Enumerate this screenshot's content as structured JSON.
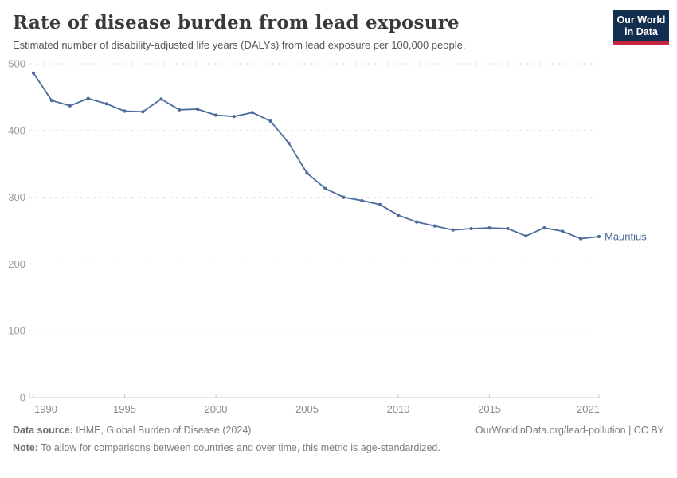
{
  "header": {
    "title": "Rate of disease burden from lead exposure",
    "subtitle": "Estimated number of disability-adjusted life years (DALYs) from lead exposure per 100,000 people.",
    "logo": {
      "line1": "Our World",
      "line2": "in Data"
    }
  },
  "chart_data": {
    "type": "line",
    "title": "Rate of disease burden from lead exposure",
    "x": [
      1990,
      1991,
      1992,
      1993,
      1994,
      1995,
      1996,
      1997,
      1998,
      1999,
      2000,
      2001,
      2002,
      2003,
      2004,
      2005,
      2006,
      2007,
      2008,
      2009,
      2010,
      2011,
      2012,
      2013,
      2014,
      2015,
      2016,
      2017,
      2018,
      2019,
      2020,
      2021
    ],
    "series": [
      {
        "name": "Mauritius",
        "color": "#4C6A9C",
        "values": [
          486,
          445,
          437,
          448,
          440,
          429,
          428,
          447,
          431,
          432,
          423,
          421,
          427,
          414,
          381,
          336,
          313,
          300,
          295,
          289,
          273,
          263,
          257,
          251,
          253,
          254,
          253,
          242,
          254,
          249,
          238,
          241
        ]
      }
    ],
    "xlabel": "",
    "ylabel": "",
    "xlim": [
      1990,
      2021
    ],
    "ylim": [
      0,
      500
    ],
    "xticks": [
      1990,
      1995,
      2000,
      2005,
      2010,
      2015,
      2021
    ],
    "yticks": [
      0,
      100,
      200,
      300,
      400,
      500
    ],
    "grid": "horizontal-dashed",
    "legend_position": "end-of-line-label",
    "end_label": "Mauritius"
  },
  "footer": {
    "source_label": "Data source:",
    "source_text": " IHME, Global Burden of Disease (2024)",
    "attribution": "OurWorldinData.org/lead-pollution | CC BY",
    "note_label": "Note:",
    "note_text": " To allow for comparisons between countries and over time, this metric is age-standardized."
  },
  "colors": {
    "series": "#4C6A9C",
    "grid": "#dedede",
    "axis": "#c9c9c9",
    "y_tick_label": "#999999",
    "x_tick_label": "#8a8a8a",
    "logo_bg": "#132f4f",
    "logo_bar": "#c52541"
  }
}
